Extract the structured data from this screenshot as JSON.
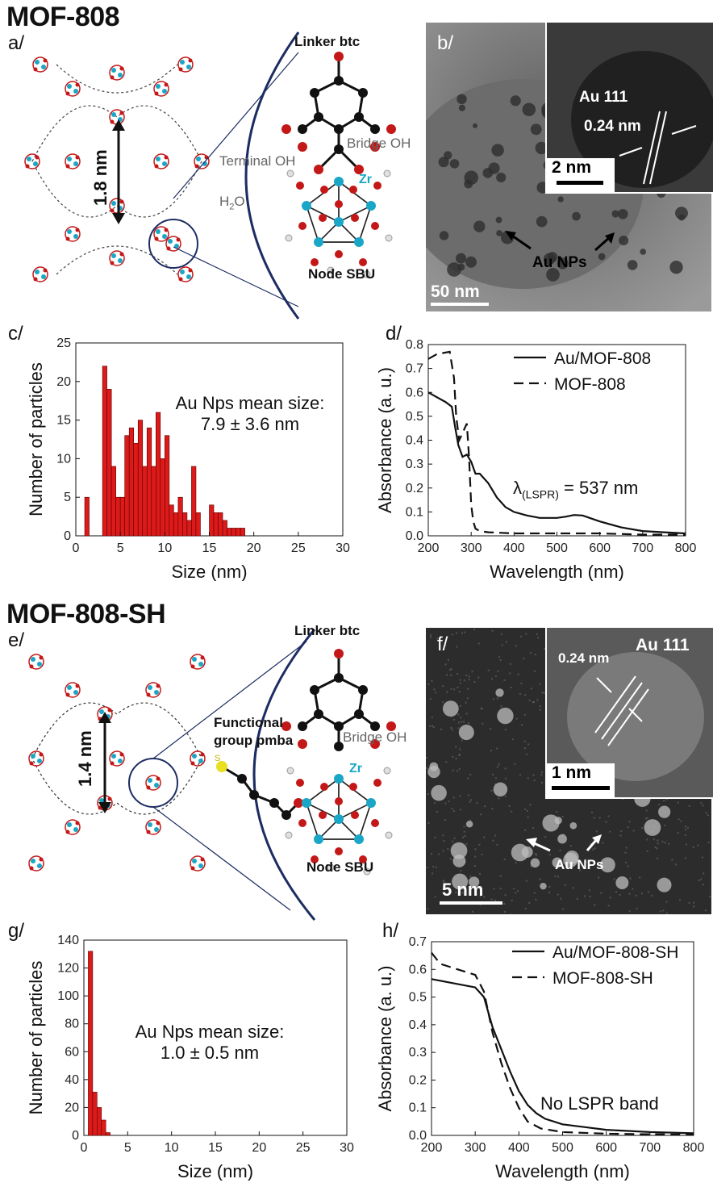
{
  "section1": {
    "title": "MOF-808",
    "panel_a": {
      "label": "a/",
      "pore_size": "1.8 nm",
      "linker": "Linker btc",
      "bridge_oh": "Bridge OH",
      "terminal_oh": "Terminal OH",
      "h2o": "H",
      "h2o_sub": "2",
      "h2o_end": "O",
      "zr": "Zr",
      "node": "Node SBU"
    },
    "panel_b": {
      "label": "b/",
      "plane": "Au 111",
      "d_spacing": "0.24 nm",
      "inset_scale": "2 nm",
      "particles": "Au NPs",
      "scale": "50 nm"
    },
    "panel_c": {
      "label": "c/",
      "annotation_line1": "Au Nps mean size:",
      "annotation_line2": "7.9 ± 3.6 nm"
    },
    "panel_d": {
      "label": "d/",
      "lspr_symbol": "λ",
      "lspr_sub": "(LSPR)",
      "lspr_value": "= 537 nm"
    }
  },
  "section2": {
    "title": "MOF-808-SH",
    "panel_e": {
      "label": "e/",
      "pore_size": "1.4 nm",
      "linker": "Linker btc",
      "functional_line1": "Functional",
      "functional_line2": "group pmba",
      "s_atom": "S",
      "bridge_oh": "Bridge OH",
      "zr": "Zr",
      "node": "Node SBU"
    },
    "panel_f": {
      "label": "f/",
      "plane": "Au 111",
      "d_spacing": "0.24 nm",
      "inset_scale": "1 nm",
      "particles": "Au NPs",
      "scale": "5 nm"
    },
    "panel_g": {
      "label": "g/",
      "annotation_line1": "Au Nps mean size:",
      "annotation_line2": "1.0 ± 0.5 nm"
    },
    "panel_h": {
      "label": "h/",
      "annotation": "No LSPR band"
    }
  },
  "colors": {
    "bar": "#dd1a1a",
    "zr": "#1aa7c7",
    "oxygen": "#c41818",
    "carbon": "#111111",
    "arc": "#1d2d63"
  },
  "chart_data": [
    {
      "id": "c",
      "type": "bar",
      "xlabel": "Size (nm)",
      "ylabel": "Number of particles",
      "xlim": [
        0,
        30
      ],
      "ylim": [
        0,
        25
      ],
      "xticks": [
        "0",
        "5",
        "10",
        "15",
        "20",
        "25",
        "30"
      ],
      "yticks": [
        "0",
        "5",
        "10",
        "15",
        "20",
        "25"
      ],
      "bin_width": 0.5,
      "x": [
        1.25,
        3.25,
        3.75,
        4.25,
        4.75,
        5.25,
        5.75,
        6.25,
        6.75,
        7.25,
        7.75,
        8.25,
        8.75,
        9.25,
        9.75,
        10.25,
        10.75,
        11.25,
        11.75,
        12.25,
        12.75,
        13.25,
        13.75,
        14.25,
        14.75,
        15.25,
        15.75,
        16.25,
        16.75,
        17.25,
        17.75,
        18.25,
        18.75
      ],
      "values": [
        5,
        22,
        19,
        9,
        5,
        5,
        13,
        14,
        12,
        15,
        9,
        14,
        9,
        16,
        10,
        13,
        4,
        3,
        5,
        3,
        2,
        9,
        3,
        0,
        0,
        4,
        3,
        3,
        2,
        1,
        1,
        1,
        1
      ]
    },
    {
      "id": "d",
      "type": "line",
      "xlabel": "Wavelength (nm)",
      "ylabel": "Absorbance (a. u.)",
      "xlim": [
        200,
        800
      ],
      "ylim": [
        0,
        0.8
      ],
      "xticks": [
        "200",
        "300",
        "400",
        "500",
        "600",
        "700",
        "800"
      ],
      "yticks": [
        "0.0",
        "0.1",
        "0.2",
        "0.3",
        "0.4",
        "0.5",
        "0.6",
        "0.7",
        "0.8"
      ],
      "legend_position": "top-right",
      "series": [
        {
          "name": "Au/MOF-808",
          "style": "solid",
          "x": [
            200,
            220,
            240,
            255,
            262,
            270,
            280,
            290,
            300,
            310,
            320,
            340,
            360,
            380,
            400,
            430,
            460,
            500,
            520,
            540,
            560,
            600,
            650,
            700,
            750,
            800
          ],
          "y": [
            0.6,
            0.58,
            0.56,
            0.54,
            0.46,
            0.38,
            0.33,
            0.34,
            0.31,
            0.26,
            0.26,
            0.22,
            0.16,
            0.12,
            0.1,
            0.085,
            0.075,
            0.075,
            0.08,
            0.087,
            0.085,
            0.06,
            0.035,
            0.02,
            0.015,
            0.01
          ]
        },
        {
          "name": "MOF-808",
          "style": "dashed",
          "x": [
            200,
            220,
            250,
            260,
            265,
            272,
            280,
            290,
            295,
            300,
            305,
            310,
            320,
            340,
            400,
            500,
            600,
            700,
            800
          ],
          "y": [
            0.74,
            0.76,
            0.77,
            0.66,
            0.5,
            0.4,
            0.43,
            0.47,
            0.33,
            0.13,
            0.06,
            0.03,
            0.02,
            0.015,
            0.01,
            0.01,
            0.01,
            0.005,
            0.005
          ]
        }
      ]
    },
    {
      "id": "g",
      "type": "bar",
      "xlabel": "Size (nm)",
      "ylabel": "Number of particles",
      "xlim": [
        0,
        30
      ],
      "ylim": [
        0,
        140
      ],
      "xticks": [
        "0",
        "5",
        "10",
        "15",
        "20",
        "25",
        "30"
      ],
      "yticks": [
        "0",
        "20",
        "40",
        "60",
        "80",
        "100",
        "120",
        "140"
      ],
      "bin_width": 0.5,
      "x": [
        0.75,
        1.25,
        1.75,
        2.25,
        2.75
      ],
      "values": [
        132,
        31,
        20,
        11,
        2
      ]
    },
    {
      "id": "h",
      "type": "line",
      "xlabel": "Wavelength (nm)",
      "ylabel": "Absorbance (a. u.)",
      "xlim": [
        200,
        800
      ],
      "ylim": [
        0,
        0.7
      ],
      "xticks": [
        "200",
        "300",
        "400",
        "500",
        "600",
        "700",
        "800"
      ],
      "yticks": [
        "0.0",
        "0.1",
        "0.2",
        "0.3",
        "0.4",
        "0.5",
        "0.6",
        "0.7"
      ],
      "legend_position": "top-right",
      "series": [
        {
          "name": "Au/MOF-808-SH",
          "style": "solid",
          "x": [
            200,
            250,
            300,
            320,
            340,
            360,
            380,
            400,
            420,
            440,
            460,
            500,
            550,
            600,
            700,
            800
          ],
          "y": [
            0.565,
            0.55,
            0.535,
            0.5,
            0.39,
            0.31,
            0.23,
            0.16,
            0.11,
            0.08,
            0.06,
            0.04,
            0.03,
            0.02,
            0.012,
            0.008
          ]
        },
        {
          "name": "MOF-808-SH",
          "style": "dashed",
          "x": [
            200,
            220,
            260,
            300,
            320,
            340,
            360,
            380,
            400,
            420,
            450,
            500,
            600,
            700,
            800
          ],
          "y": [
            0.66,
            0.62,
            0.6,
            0.58,
            0.52,
            0.37,
            0.26,
            0.17,
            0.1,
            0.05,
            0.025,
            0.012,
            0.006,
            0.004,
            0.003
          ]
        }
      ]
    }
  ]
}
